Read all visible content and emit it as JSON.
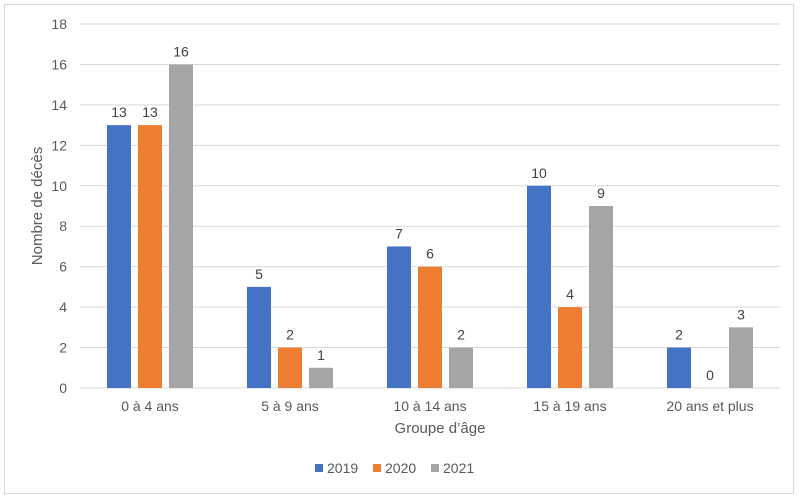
{
  "chart_data": {
    "type": "bar",
    "title": "",
    "xlabel": "Groupe d’âge",
    "ylabel": "Nombre de décès",
    "ylim": [
      0,
      18
    ],
    "yticks": [
      0,
      2,
      4,
      6,
      8,
      10,
      12,
      14,
      16,
      18
    ],
    "categories": [
      "0 à 4 ans",
      "5 à 9 ans",
      "10 à 14 ans",
      "15 à 19 ans",
      "20 ans et plus"
    ],
    "series": [
      {
        "name": "2019",
        "color": "#4472c4",
        "values": [
          13,
          5,
          7,
          10,
          2
        ]
      },
      {
        "name": "2020",
        "color": "#ed7d31",
        "values": [
          13,
          2,
          6,
          4,
          0
        ]
      },
      {
        "name": "2021",
        "color": "#a5a5a5",
        "values": [
          16,
          1,
          2,
          9,
          3
        ]
      }
    ],
    "grid": true,
    "legend": "bottom-center"
  }
}
